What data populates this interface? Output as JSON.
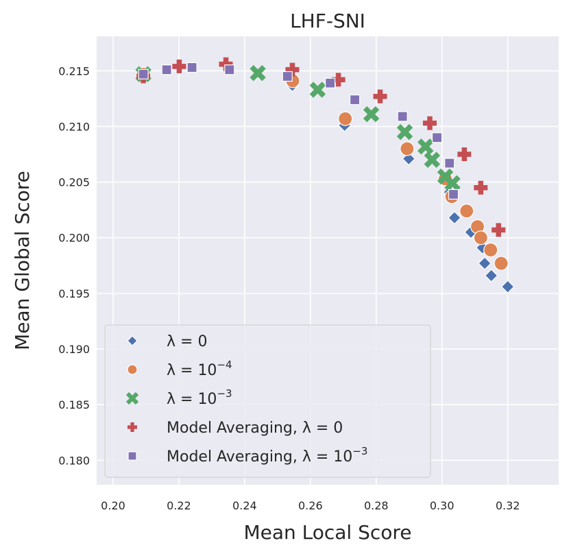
{
  "chart_data": {
    "type": "scatter",
    "title": "LHF-SNI",
    "xlabel": "Mean Local Score",
    "ylabel": "Mean Global Score",
    "xlim": [
      0.195,
      0.3355
    ],
    "ylim": [
      0.1778,
      0.2181
    ],
    "xticks": [
      "0.20",
      "0.22",
      "0.24",
      "0.26",
      "0.28",
      "0.30",
      "0.32"
    ],
    "yticks": [
      "0.180",
      "0.185",
      "0.190",
      "0.195",
      "0.200",
      "0.205",
      "0.210",
      "0.215"
    ],
    "legend_position": "lower-left",
    "series": [
      {
        "name": "λ = 0",
        "legend_main": "λ = 0",
        "legend_sup": "",
        "marker": "diamond",
        "color": "#4c72b0",
        "points": [
          [
            0.2092,
            0.2148
          ],
          [
            0.2545,
            0.2137
          ],
          [
            0.2704,
            0.2101
          ],
          [
            0.2899,
            0.2071
          ],
          [
            0.3023,
            0.2041
          ],
          [
            0.3038,
            0.2018
          ],
          [
            0.3088,
            0.2005
          ],
          [
            0.3123,
            0.1991
          ],
          [
            0.313,
            0.1977
          ],
          [
            0.315,
            0.1966
          ],
          [
            0.32,
            0.1956
          ]
        ]
      },
      {
        "name": "λ = 10^-4",
        "legend_main": "λ = 10",
        "legend_sup": "−4",
        "marker": "circle",
        "color": "#dd8452",
        "points": [
          [
            0.2092,
            0.2147
          ],
          [
            0.2546,
            0.2141
          ],
          [
            0.2706,
            0.2107
          ],
          [
            0.2894,
            0.208
          ],
          [
            0.301,
            0.2053
          ],
          [
            0.303,
            0.2037
          ],
          [
            0.3075,
            0.2024
          ],
          [
            0.3108,
            0.201
          ],
          [
            0.3118,
            0.2
          ],
          [
            0.3148,
            0.1989
          ],
          [
            0.318,
            0.1977
          ]
        ]
      },
      {
        "name": "λ = 10^-3",
        "legend_main": "λ = 10",
        "legend_sup": "−3",
        "marker": "x",
        "color": "#55a868",
        "points": [
          [
            0.2092,
            0.2147
          ],
          [
            0.244,
            0.2148
          ],
          [
            0.2622,
            0.2133
          ],
          [
            0.2785,
            0.2111
          ],
          [
            0.2887,
            0.2095
          ],
          [
            0.295,
            0.2082
          ],
          [
            0.297,
            0.207
          ],
          [
            0.301,
            0.2055
          ],
          [
            0.3032,
            0.2049
          ]
        ]
      },
      {
        "name": "Model Averaging, λ = 0",
        "legend_main": "Model Averaging, λ = 0",
        "legend_sup": "",
        "marker": "plus",
        "color": "#c44e52",
        "points": [
          [
            0.2092,
            0.2145
          ],
          [
            0.2201,
            0.2154
          ],
          [
            0.2343,
            0.2156
          ],
          [
            0.2545,
            0.2151
          ],
          [
            0.2685,
            0.2142
          ],
          [
            0.2812,
            0.2127
          ],
          [
            0.2963,
            0.2103
          ],
          [
            0.3068,
            0.2075
          ],
          [
            0.3118,
            0.2045
          ],
          [
            0.3172,
            0.2007
          ]
        ]
      },
      {
        "name": "Model Averaging, λ = 10^-3",
        "legend_main": "Model Averaging, λ = 10",
        "legend_sup": "−3",
        "marker": "square",
        "color": "#8172b3",
        "points": [
          [
            0.2092,
            0.2147
          ],
          [
            0.2163,
            0.2151
          ],
          [
            0.224,
            0.2153
          ],
          [
            0.2354,
            0.2151
          ],
          [
            0.253,
            0.2145
          ],
          [
            0.266,
            0.2139
          ],
          [
            0.2735,
            0.2124
          ],
          [
            0.288,
            0.2109
          ],
          [
            0.2985,
            0.209
          ],
          [
            0.3023,
            0.2067
          ],
          [
            0.3035,
            0.2039
          ]
        ]
      }
    ]
  }
}
